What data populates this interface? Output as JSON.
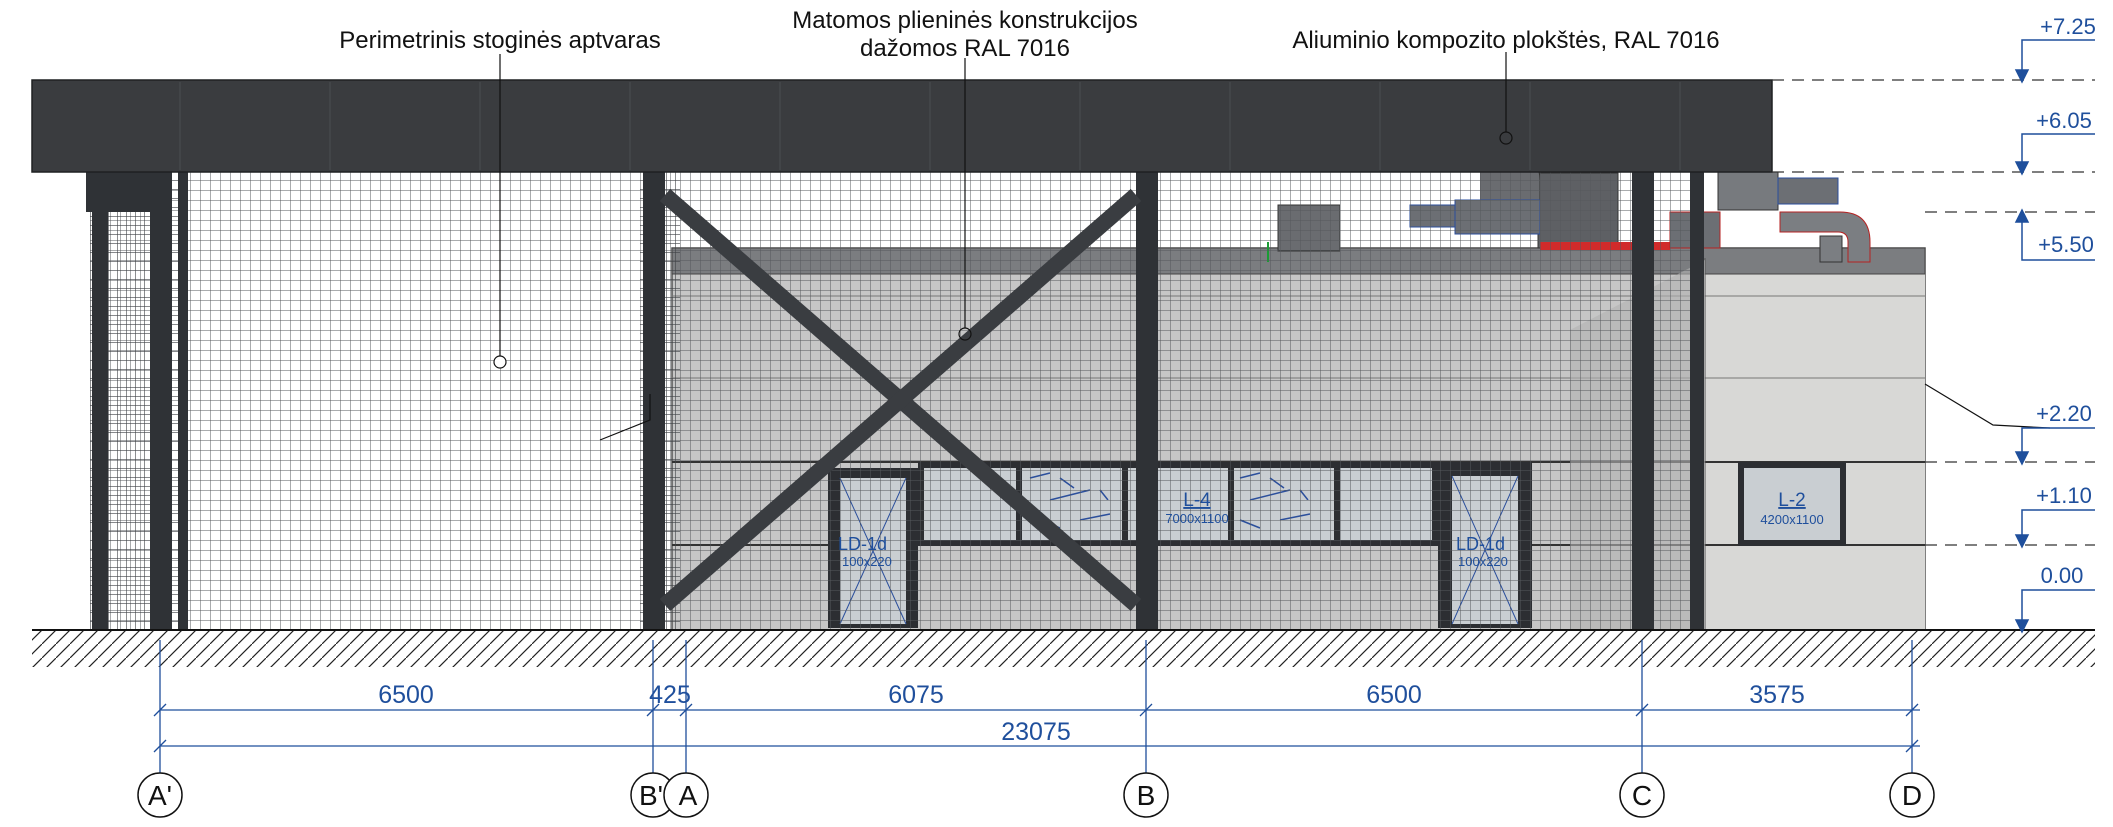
{
  "annotations": {
    "perimeter_fence": "Perimetrinis stoginės aptvaras",
    "steel_line1": "Matomos plieninės konstrukcijos",
    "steel_line2": "dažomos RAL 7016",
    "aluminium_panels": "Aliuminio kompozito plokštės, RAL 7016"
  },
  "levels": [
    "+7.25",
    "+6.05",
    "+5.50",
    "+2.20",
    "+1.10",
    "0.00"
  ],
  "openings": {
    "ld1_left_code": "LD-1d",
    "ld1_left_size": "100x220",
    "l4_code": "L-4",
    "l4_size": "7000x1100",
    "ld1_right_code": "LD-1d",
    "ld1_right_size": "100x220",
    "l2_code": "L-2",
    "l2_size": "4200x1100"
  },
  "dimensions": {
    "spans": [
      "6500",
      "425",
      "6075",
      "6500",
      "3575"
    ],
    "total": "23075"
  },
  "axes": [
    "A'",
    "B'",
    "A",
    "B",
    "C",
    "D"
  ],
  "colors": {
    "roof": "#3a3c3f",
    "steel": "#2f3236",
    "mesh": "#55585c",
    "wall": "#c6c6c6",
    "wall_light": "#d8d8d6",
    "dimension_blue": "#1f4f9c",
    "window_frame": "#2c2e32",
    "glass": "#c9ced2"
  }
}
